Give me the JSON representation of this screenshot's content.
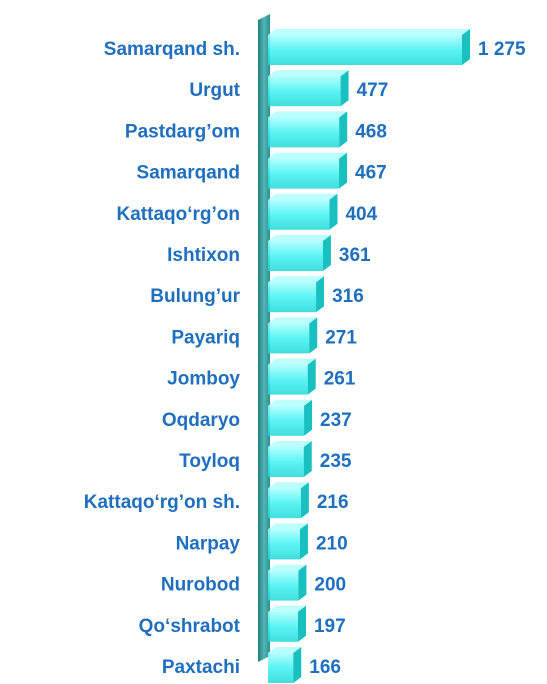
{
  "chart_data": {
    "type": "bar",
    "orientation": "horizontal",
    "categories": [
      "Samarqand sh.",
      "Urgut",
      "Pastdarg’om",
      "Samarqand",
      "Kattaqo‘rg’on",
      "Ishtixon",
      "Bulung’ur",
      "Payariq",
      "Jomboy",
      "Oqdaryo",
      "Toyloq",
      "Kattaqo‘rg’on sh.",
      "Narpay",
      "Nurobod",
      "Qo‘shrabot",
      "Paxtachi"
    ],
    "values": [
      1275,
      477,
      468,
      467,
      404,
      361,
      316,
      271,
      261,
      237,
      235,
      216,
      210,
      200,
      197,
      166
    ],
    "value_labels": [
      "1 275",
      "477",
      "468",
      "467",
      "404",
      "361",
      "316",
      "271",
      "261",
      "237",
      "235",
      "216",
      "210",
      "200",
      "197",
      "166"
    ],
    "color": "#33f5f5"
  }
}
